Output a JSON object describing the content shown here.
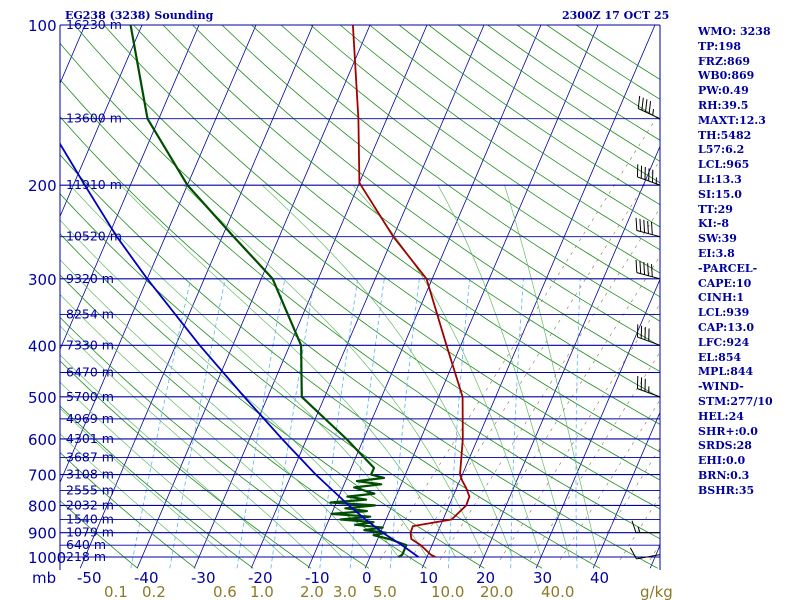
{
  "header": {
    "station": "EG238 (3238) Sounding",
    "time": "2300Z 17 OCT 25"
  },
  "indices": [
    "WMO: 3238",
    "TP:198",
    "FRZ:869",
    "WB0:869",
    "PW:0.49",
    "RH:39.5",
    "MAXT:12.3",
    "TH:5482",
    "L57:6.2",
    "LCL:965",
    "LI:13.3",
    "SI:15.0",
    "TT:29",
    "KI:-8",
    "SW:39",
    "EI:3.8",
    "-PARCEL-",
    "CAPE:10",
    "CINH:1",
    "LCL:939",
    "CAP:13.0",
    "LFC:924",
    "EL:854",
    "MPL:844",
    "-WIND-",
    "STM:277/10",
    "HEL:24",
    "SHR+:0.0",
    "SRDS:28",
    "EHI:0.0",
    "BRN:0.3",
    "BSHR:35"
  ],
  "colors": {
    "isobar": "#0000a0",
    "isotherm": "#0000a0",
    "dry_adiabat": "#228b22",
    "moist_adiabat": "#66bb66",
    "mixing_ratio": "#5ab4e6",
    "background_dashed": "#8b7355",
    "temperature": "#a00000",
    "dewpoint": "#004d00",
    "parcel": "#0000c0",
    "wind_barb": "#000000",
    "axis_text": "#0000a0",
    "mixratio_text": "#8b7a2a"
  },
  "chart_data": {
    "type": "skew-t log-p sounding",
    "pressure_axis": {
      "unit_label": "mb",
      "levels": [
        100,
        200,
        300,
        400,
        500,
        600,
        700,
        800,
        900,
        1000
      ],
      "range": [
        1000,
        100
      ],
      "scale": "log"
    },
    "temperature_axis": {
      "ticks": [
        -50,
        -40,
        -30,
        -20,
        -10,
        0,
        10,
        20,
        30,
        40
      ],
      "skew_deg_per_log_unit": 40
    },
    "height_labels": [
      {
        "p": 100,
        "label": "16230 m"
      },
      {
        "p": 150,
        "label": "13600 m"
      },
      {
        "p": 200,
        "label": "11910 m"
      },
      {
        "p": 250,
        "label": "10520 m"
      },
      {
        "p": 300,
        "label": "9320 m"
      },
      {
        "p": 350,
        "label": "8254 m"
      },
      {
        "p": 400,
        "label": "7330 m"
      },
      {
        "p": 450,
        "label": "6470 m"
      },
      {
        "p": 500,
        "label": "5700 m"
      },
      {
        "p": 550,
        "label": "4969 m"
      },
      {
        "p": 600,
        "label": "4301 m"
      },
      {
        "p": 650,
        "label": "3687 m"
      },
      {
        "p": 700,
        "label": "3108 m"
      },
      {
        "p": 750,
        "label": "2555 m"
      },
      {
        "p": 800,
        "label": "2032 m"
      },
      {
        "p": 850,
        "label": "1540 m"
      },
      {
        "p": 900,
        "label": "1079 m"
      },
      {
        "p": 950,
        "label": "640 m"
      },
      {
        "p": 1000,
        "label": "218 m"
      }
    ],
    "mixing_ratio_labels": [
      "0.1",
      "0.2",
      "0.6",
      "1.0",
      "2.0",
      "3.0",
      "5.0",
      "10.0",
      "20.0",
      "40.0"
    ],
    "mixing_ratio_unit": "g/kg",
    "series": [
      {
        "name": "temperature",
        "points": [
          [
            1000,
            11.5
          ],
          [
            990,
            10.5
          ],
          [
            950,
            8.0
          ],
          [
            925,
            5.9
          ],
          [
            900,
            5.3
          ],
          [
            875,
            5.2
          ],
          [
            850,
            11.5
          ],
          [
            800,
            13.0
          ],
          [
            770,
            12.9
          ],
          [
            740,
            11.6
          ],
          [
            720,
            10.5
          ],
          [
            700,
            9.6
          ],
          [
            600,
            7.4
          ],
          [
            500,
            4.2
          ],
          [
            400,
            -2.5
          ],
          [
            300,
            -11.0
          ],
          [
            250,
            -20.0
          ],
          [
            198,
            -30.0
          ],
          [
            150,
            -35.0
          ],
          [
            100,
            -43.0
          ]
        ]
      },
      {
        "name": "dewpoint",
        "points": [
          [
            1000,
            5.0
          ],
          [
            990,
            5.5
          ],
          [
            950,
            5.5
          ],
          [
            925,
            2.0
          ],
          [
            910,
            -1.0
          ],
          [
            900,
            1.0
          ],
          [
            890,
            -3.0
          ],
          [
            880,
            0.0
          ],
          [
            870,
            -5.0
          ],
          [
            860,
            -2.0
          ],
          [
            850,
            -8.0
          ],
          [
            840,
            -3.0
          ],
          [
            830,
            -10.0
          ],
          [
            820,
            -4.0
          ],
          [
            810,
            -8.0
          ],
          [
            800,
            -3.0
          ],
          [
            790,
            -11.0
          ],
          [
            780,
            -5.0
          ],
          [
            770,
            -8.5
          ],
          [
            760,
            -4.0
          ],
          [
            740,
            -8.0
          ],
          [
            730,
            -3.5
          ],
          [
            720,
            -8.0
          ],
          [
            710,
            -3.5
          ],
          [
            700,
            -6.0
          ],
          [
            680,
            -6.0
          ],
          [
            600,
            -13.0
          ],
          [
            500,
            -24.0
          ],
          [
            400,
            -28.0
          ],
          [
            300,
            -38.0
          ],
          [
            250,
            -48.0
          ],
          [
            200,
            -60.0
          ],
          [
            150,
            -72.0
          ],
          [
            100,
            -82.0
          ]
        ]
      },
      {
        "name": "parcel",
        "points": [
          [
            1000,
            8.5
          ],
          [
            950,
            4.7
          ],
          [
            900,
            0.4
          ],
          [
            850,
            -3.6
          ],
          [
            800,
            -7.6
          ],
          [
            700,
            -15.7
          ],
          [
            600,
            -24.3
          ],
          [
            500,
            -34.1
          ],
          [
            400,
            -45.8
          ],
          [
            300,
            -60.0
          ],
          [
            250,
            -68.5
          ],
          [
            200,
            -78.0
          ],
          [
            150,
            -90.0
          ],
          [
            120,
            -98.0
          ]
        ]
      }
    ],
    "wind_barbs": [
      {
        "p": 990,
        "dir": 260,
        "speed_kt": 10
      },
      {
        "p": 900,
        "dir": 270,
        "speed_kt": 15
      },
      {
        "p": 500,
        "dir": 290,
        "speed_kt": 35
      },
      {
        "p": 400,
        "dir": 290,
        "speed_kt": 40
      },
      {
        "p": 300,
        "dir": 285,
        "speed_kt": 50
      },
      {
        "p": 250,
        "dir": 285,
        "speed_kt": 50
      },
      {
        "p": 200,
        "dir": 290,
        "speed_kt": 55
      },
      {
        "p": 150,
        "dir": 295,
        "speed_kt": 45
      }
    ],
    "grid": true
  }
}
